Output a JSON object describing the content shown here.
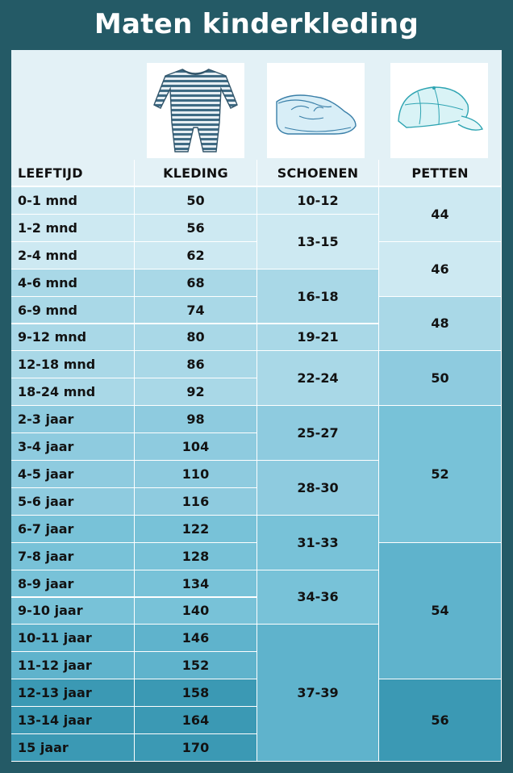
{
  "title": "Maten kinderkleding",
  "headers": [
    "LEEFTIJD",
    "KLEDING",
    "SCHOENEN",
    "PETTEN"
  ],
  "images": [
    "onesie-image",
    "baby-shoe-image",
    "cap-image"
  ],
  "rows": [
    {
      "age": "0-1 mnd",
      "size": "50"
    },
    {
      "age": "1-2 mnd",
      "size": "56"
    },
    {
      "age": "2-4 mnd",
      "size": "62"
    },
    {
      "age": "4-6 mnd",
      "size": "68"
    },
    {
      "age": "6-9 mnd",
      "size": "74"
    },
    {
      "age": "9-12 mnd",
      "size": "80"
    },
    {
      "age": "12-18 mnd",
      "size": "86"
    },
    {
      "age": "18-24 mnd",
      "size": "92"
    },
    {
      "age": "2-3 jaar",
      "size": "98"
    },
    {
      "age": "3-4 jaar",
      "size": "104"
    },
    {
      "age": "4-5 jaar",
      "size": "110"
    },
    {
      "age": "5-6 jaar",
      "size": "116"
    },
    {
      "age": "6-7 jaar",
      "size": "122"
    },
    {
      "age": "7-8 jaar",
      "size": "128"
    },
    {
      "age": "8-9 jaar",
      "size": "134"
    },
    {
      "age": "9-10 jaar",
      "size": "140"
    },
    {
      "age": "10-11 jaar",
      "size": "146"
    },
    {
      "age": "11-12 jaar",
      "size": "152"
    },
    {
      "age": "12-13 jaar",
      "size": "158"
    },
    {
      "age": "13-14 jaar",
      "size": "164"
    },
    {
      "age": "15 jaar",
      "size": "170"
    }
  ],
  "shoes": [
    {
      "label": "10-12",
      "start": 0,
      "span": 1
    },
    {
      "label": "13-15",
      "start": 1,
      "span": 2
    },
    {
      "label": "16-18",
      "start": 3,
      "span": 2
    },
    {
      "label": "19-21",
      "start": 5,
      "span": 1
    },
    {
      "label": "22-24",
      "start": 6,
      "span": 2
    },
    {
      "label": "25-27",
      "start": 8,
      "span": 2
    },
    {
      "label": "28-30",
      "start": 10,
      "span": 2
    },
    {
      "label": "31-33",
      "start": 12,
      "span": 2
    },
    {
      "label": "34-36",
      "start": 14,
      "span": 2
    },
    {
      "label": "37-39",
      "start": 16,
      "span": 5
    }
  ],
  "caps": [
    {
      "label": "44",
      "start": 0,
      "span": 2
    },
    {
      "label": "46",
      "start": 2,
      "span": 2
    },
    {
      "label": "48",
      "start": 4,
      "span": 2
    },
    {
      "label": "50",
      "start": 6,
      "span": 2
    },
    {
      "label": "52",
      "start": 8,
      "span": 5
    },
    {
      "label": "54",
      "start": 13,
      "span": 5
    },
    {
      "label": "56",
      "start": 18,
      "span": 3
    }
  ],
  "colors": {
    "background": "#245a66",
    "header": "#e3f1f6",
    "row_tints": [
      "#cde9f2",
      "#a9d8e7",
      "#8ecbdf",
      "#78c2d8",
      "#5fb3cc",
      "#3b99b4"
    ],
    "text": "#121212"
  }
}
